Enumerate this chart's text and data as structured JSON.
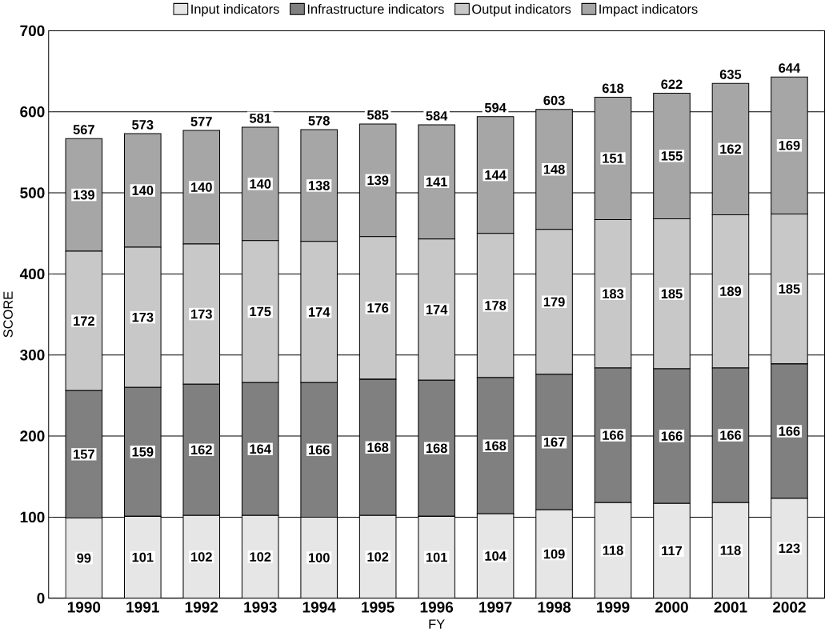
{
  "chart_data": {
    "type": "bar",
    "stacked": true,
    "xlabel": "FY",
    "ylabel": "SCORE",
    "categories": [
      "1990",
      "1991",
      "1992",
      "1993",
      "1994",
      "1995",
      "1996",
      "1997",
      "1998",
      "1999",
      "2000",
      "2001",
      "2002"
    ],
    "series": [
      {
        "name": "Input indicators",
        "color": "#e6e6e6",
        "values": [
          99,
          101,
          102,
          102,
          100,
          102,
          101,
          104,
          109,
          118,
          117,
          118,
          123
        ]
      },
      {
        "name": "Infrastructure indicators",
        "color": "#808080",
        "values": [
          157,
          159,
          162,
          164,
          166,
          168,
          168,
          168,
          167,
          166,
          166,
          166,
          166
        ]
      },
      {
        "name": "Output indicators",
        "color": "#c8c8c8",
        "values": [
          172,
          173,
          173,
          175,
          174,
          176,
          174,
          178,
          179,
          183,
          185,
          189,
          185
        ]
      },
      {
        "name": "Impact indicators",
        "color": "#a6a6a6",
        "values": [
          139,
          140,
          140,
          140,
          138,
          139,
          141,
          144,
          148,
          151,
          155,
          162,
          169
        ]
      }
    ],
    "totals": [
      "567",
      "573",
      "577",
      "581",
      "578",
      "585",
      "584",
      "594",
      "603",
      "618",
      "622",
      "635",
      "644"
    ],
    "data_labels": true,
    "ylim": [
      0,
      700
    ],
    "yticks": [
      0,
      100,
      200,
      300,
      400,
      500,
      600,
      700
    ],
    "grid": "y",
    "legend": "top"
  }
}
